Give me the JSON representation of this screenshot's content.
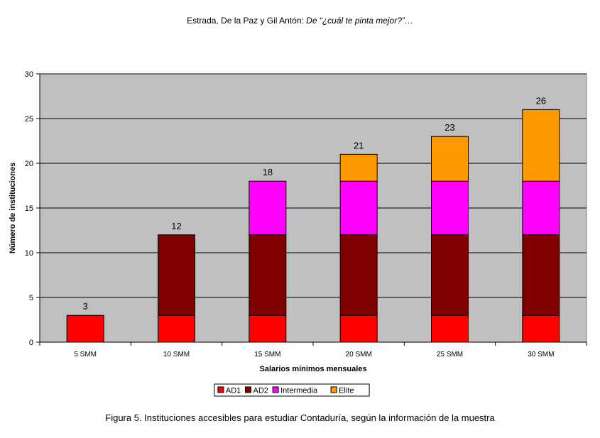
{
  "header": {
    "authors": "Estrada, De la Paz y Gil Antón: ",
    "title_italic": "De “¿cuál te pinta mejor?”…"
  },
  "caption": "Figura 5. Instituciones accesibles para estudiar Contaduría, según la información de la muestra",
  "chart_data": {
    "type": "bar",
    "stacked": true,
    "categories": [
      "5 SMM",
      "10 SMM",
      "15 SMM",
      "20 SMM",
      "25 SMM",
      "30 SMM"
    ],
    "series": [
      {
        "name": "AD1",
        "color": "#ff0000",
        "values": [
          3,
          3,
          3,
          3,
          3,
          3
        ]
      },
      {
        "name": "AD2",
        "color": "#800000",
        "values": [
          0,
          9,
          9,
          9,
          9,
          9
        ]
      },
      {
        "name": "Intermedia",
        "color": "#ff00ff",
        "values": [
          0,
          0,
          6,
          6,
          6,
          6
        ]
      },
      {
        "name": "Elite",
        "color": "#ff9900",
        "values": [
          0,
          0,
          0,
          3,
          5,
          8
        ]
      }
    ],
    "totals": [
      3,
      12,
      18,
      21,
      23,
      26
    ],
    "xlabel": "Salarios mínimos mensuales",
    "ylabel": "Número de instituciones",
    "ylim": [
      0,
      30
    ],
    "yticks": [
      0,
      5,
      10,
      15,
      20,
      25,
      30
    ],
    "grid": true,
    "plot_background": "#c0c0c0",
    "legend_position": "bottom"
  }
}
